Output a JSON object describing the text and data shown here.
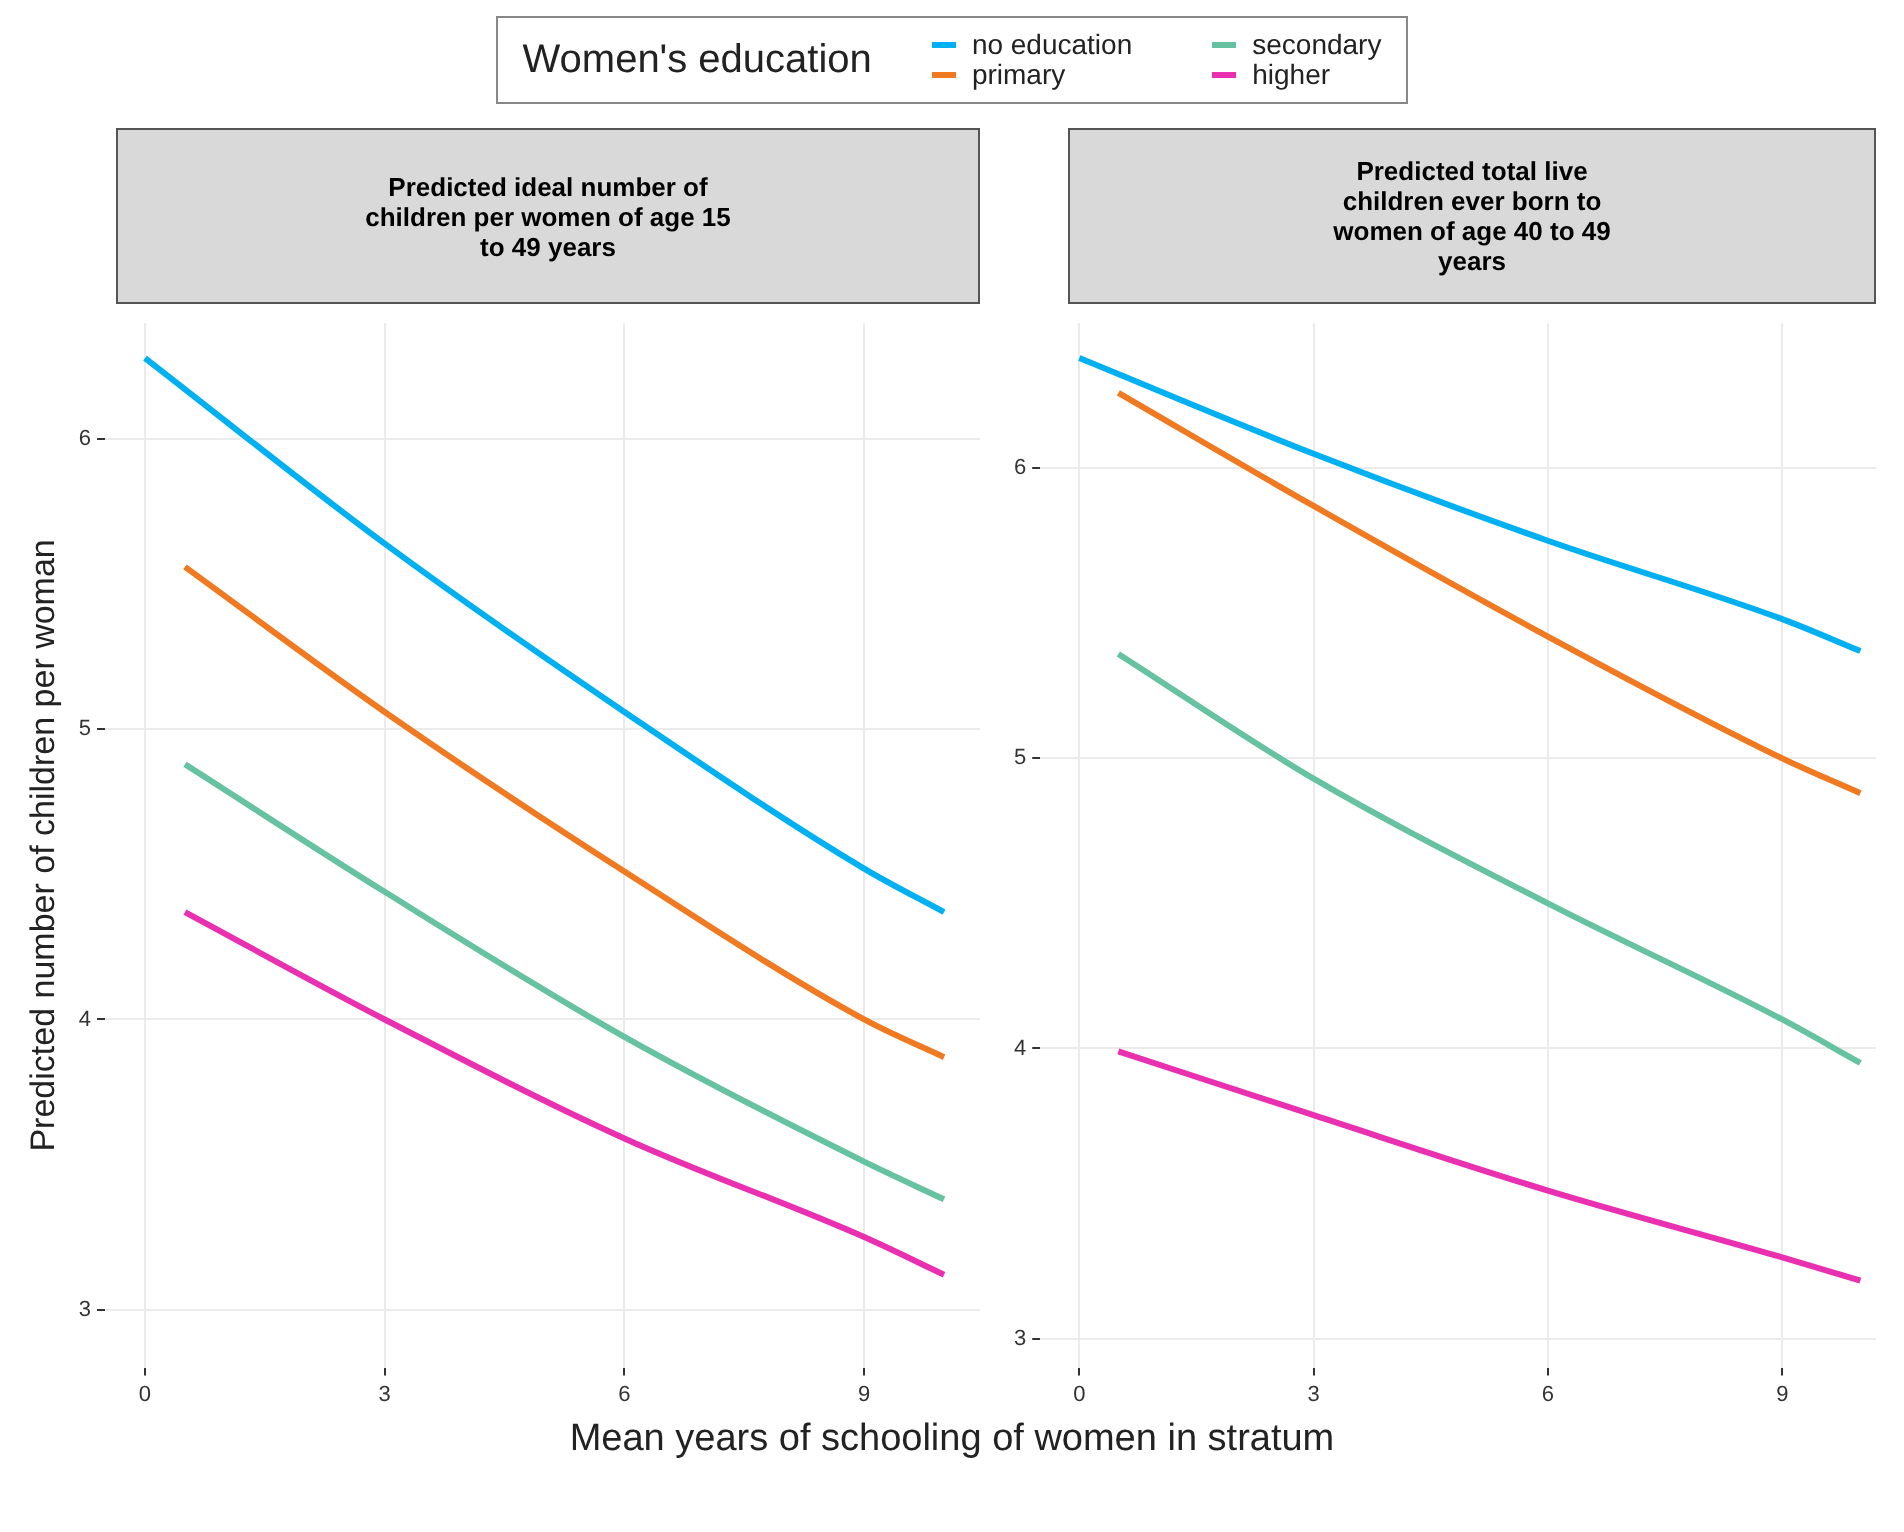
{
  "chart_data": [
    {
      "type": "line",
      "title": "Predicted ideal number of children per women of age 15 to 49 years",
      "xlabel": "Mean years of schooling of women in stratum",
      "ylabel": "Predicted number of children per woman",
      "legend_title": "Women's education",
      "legend": "top",
      "grid": true,
      "line_style": "solid",
      "xlim": [
        -0.5,
        10.45
      ],
      "xticks": [
        0,
        3,
        6,
        9
      ],
      "ylim": [
        2.8,
        6.4
      ],
      "yticks": [
        3,
        4,
        5,
        6
      ],
      "series": [
        {
          "name": "no education",
          "color": "#00b0f0",
          "x": [
            0,
            3,
            6,
            9,
            10
          ],
          "values": [
            6.28,
            5.64,
            5.06,
            4.52,
            4.37
          ]
        },
        {
          "name": "primary",
          "color": "#f07a22",
          "x": [
            0.5,
            3,
            6,
            9,
            10
          ],
          "values": [
            5.56,
            5.06,
            4.51,
            4.0,
            3.87
          ]
        },
        {
          "name": "secondary",
          "color": "#66c2a0",
          "x": [
            0.5,
            3,
            6,
            9,
            10
          ],
          "values": [
            4.88,
            4.44,
            3.94,
            3.51,
            3.38
          ]
        },
        {
          "name": "higher",
          "color": "#e830b0",
          "x": [
            0.5,
            3,
            6,
            9,
            10
          ],
          "values": [
            4.37,
            4.0,
            3.59,
            3.25,
            3.12
          ]
        }
      ]
    },
    {
      "type": "line",
      "title": "Predicted total live children ever born to women of age 40 to 49 years",
      "grid": true,
      "line_style": "solid",
      "xlim": [
        -0.5,
        10.2
      ],
      "xticks": [
        0,
        3,
        6,
        9
      ],
      "ylim": [
        2.9,
        6.5
      ],
      "yticks": [
        3,
        4,
        5,
        6
      ],
      "series": [
        {
          "color": "#00b0f0",
          "x": [
            0,
            3,
            6,
            9,
            10
          ],
          "values": [
            6.38,
            6.05,
            5.75,
            5.48,
            5.37
          ]
        },
        {
          "color": "#f07a22",
          "x": [
            0.5,
            3,
            6,
            9,
            10
          ],
          "values": [
            6.26,
            5.87,
            5.42,
            5.0,
            4.88
          ]
        },
        {
          "color": "#66c2a0",
          "x": [
            0.5,
            3,
            6,
            9,
            10
          ],
          "values": [
            5.36,
            4.93,
            4.5,
            4.1,
            3.95
          ]
        },
        {
          "color": "#e830b0",
          "x": [
            0.5,
            3,
            6,
            9,
            10
          ],
          "values": [
            3.99,
            3.77,
            3.51,
            3.28,
            3.2
          ]
        }
      ]
    }
  ]
}
